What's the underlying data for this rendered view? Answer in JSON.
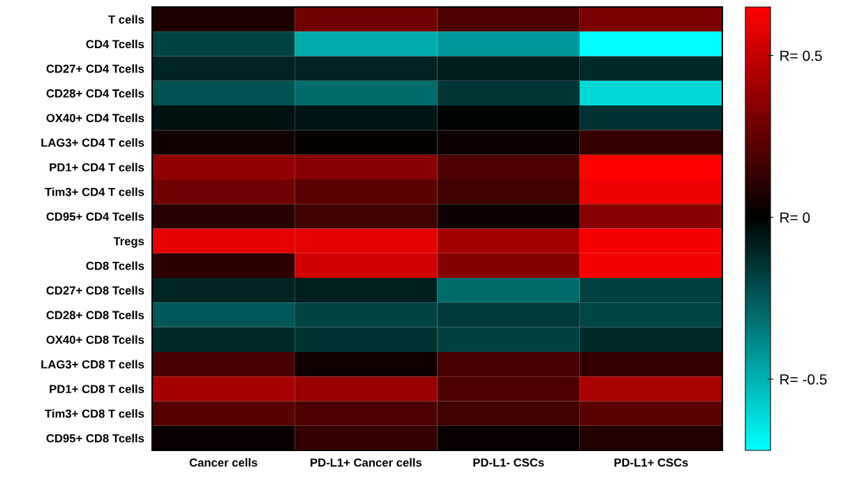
{
  "chart_data": {
    "type": "heatmap",
    "categories": [
      "Cancer cells",
      "PD-L1+ Cancer cells",
      "PD-L1- CSCs",
      "PD-L1+ CSCs"
    ],
    "y_categories": [
      "T cells",
      "CD4 Tcells",
      "CD27+ CD4 Tcells",
      "CD28+ CD4 Tcells",
      "OX40+ CD4 Tcells",
      "LAG3+ CD4 T cells",
      "PD1+ CD4 T cells",
      "Tim3+ CD4 T cells",
      "CD95+ CD4 Tcells",
      "Tregs",
      "CD8 Tcells",
      "CD27+ CD8 Tcells",
      "CD28+ CD8 Tcells",
      "OX40+ CD8 Tcells",
      "LAG3+ CD8 T cells",
      "PD1+ CD8 T cells",
      "Tim3+ CD8 T cells",
      "CD95+ CD8 Tcells"
    ],
    "cells": [
      [
        0.07,
        0.29,
        0.19,
        0.31
      ],
      [
        -0.19,
        -0.48,
        -0.43,
        -0.72
      ],
      [
        -0.1,
        -0.1,
        -0.08,
        -0.12
      ],
      [
        -0.23,
        -0.3,
        -0.15,
        -0.61
      ],
      [
        -0.05,
        -0.06,
        -0.01,
        -0.14
      ],
      [
        0.04,
        0.01,
        0.03,
        0.14
      ],
      [
        0.37,
        0.35,
        0.19,
        0.65
      ],
      [
        0.29,
        0.23,
        0.16,
        0.61
      ],
      [
        0.1,
        0.16,
        0.03,
        0.35
      ],
      [
        0.58,
        0.58,
        0.41,
        0.62
      ],
      [
        0.12,
        0.53,
        0.33,
        0.62
      ],
      [
        -0.1,
        -0.09,
        -0.3,
        -0.18
      ],
      [
        -0.25,
        -0.19,
        -0.16,
        -0.2
      ],
      [
        -0.12,
        -0.14,
        -0.18,
        -0.12
      ],
      [
        0.18,
        0.04,
        0.18,
        0.14
      ],
      [
        0.42,
        0.39,
        0.19,
        0.43
      ],
      [
        0.22,
        0.19,
        0.16,
        0.23
      ],
      [
        0.02,
        0.14,
        0.02,
        0.09
      ]
    ],
    "clim": [
      -0.72,
      0.65
    ],
    "cticks": [
      {
        "value": 0.5,
        "label": "R= 0.5"
      },
      {
        "value": 0,
        "label": "R= 0"
      },
      {
        "value": -0.5,
        "label": "R= -0.5"
      }
    ],
    "grid": false
  }
}
